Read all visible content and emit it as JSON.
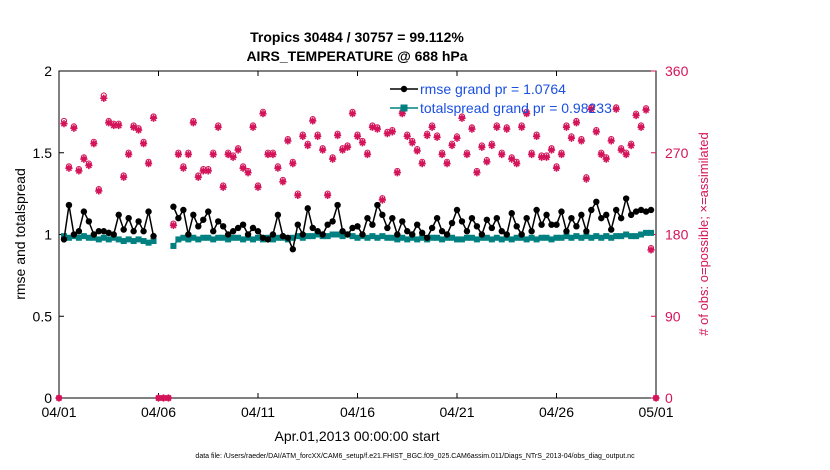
{
  "chart_data": {
    "type": "line",
    "title_line1": "Tropics 30484 / 30757 = 99.112%",
    "title_line2": "AIRS_TEMPERATURE @ 688 hPa",
    "xlabel": "Apr.01,2013 00:00:00 start",
    "ylabel_left": "rmse and totalspread",
    "ylabel_right": "# of obs: o=possible; ×=assimilated",
    "footnote": "data file: /Users/raeder/DAI/ATM_forcXX/CAM6_setup/f.e21.FHIST_BGC.f09_025.CAM6assim.011/Diags_NTrS_2013-04/obs_diag_output.nc",
    "xlim": [
      0,
      30
    ],
    "ylim_left": [
      0,
      2
    ],
    "ylim_right": [
      0,
      360
    ],
    "x_ticks": [
      0,
      5,
      10,
      15,
      20,
      25,
      30
    ],
    "x_tick_labels": [
      "04/01",
      "04/06",
      "04/11",
      "04/16",
      "04/21",
      "04/26",
      "05/01"
    ],
    "y_ticks_left": [
      "0",
      "0.5",
      "1",
      "1.5",
      "2"
    ],
    "y_ticks_right": [
      "0",
      "90",
      "180",
      "270",
      "360"
    ],
    "legend": [
      "rmse grand pr = 1.0764",
      "totalspread grand pr = 0.98233"
    ],
    "series": [
      {
        "name": "rmse",
        "color": "#000000",
        "x": [
          0.25,
          0.5,
          0.75,
          1.0,
          1.25,
          1.5,
          1.75,
          2.0,
          2.25,
          2.5,
          2.75,
          3.0,
          3.25,
          3.5,
          3.75,
          4.0,
          4.25,
          4.5,
          4.75,
          null,
          5.75,
          6.0,
          6.25,
          6.5,
          6.75,
          7.0,
          7.25,
          7.5,
          7.75,
          8.0,
          8.25,
          8.5,
          8.75,
          9.0,
          9.25,
          9.5,
          9.75,
          10.0,
          10.25,
          10.5,
          10.75,
          11.0,
          11.25,
          11.5,
          11.75,
          12.0,
          12.25,
          12.5,
          12.75,
          13.0,
          13.25,
          13.5,
          13.75,
          14.0,
          14.25,
          14.5,
          14.75,
          15.0,
          15.25,
          15.5,
          15.75,
          16.0,
          16.25,
          16.5,
          16.75,
          17.0,
          17.25,
          17.5,
          17.75,
          18.0,
          18.25,
          18.5,
          18.75,
          19.0,
          19.25,
          19.5,
          19.75,
          20.0,
          20.25,
          20.5,
          20.75,
          21.0,
          21.25,
          21.5,
          21.75,
          22.0,
          22.25,
          22.5,
          22.75,
          23.0,
          23.25,
          23.5,
          23.75,
          24.0,
          24.25,
          24.5,
          24.75,
          25.0,
          25.25,
          25.5,
          25.75,
          26.0,
          26.25,
          26.5,
          26.75,
          27.0,
          27.25,
          27.5,
          27.75,
          28.0,
          28.25,
          28.5,
          28.75,
          29.0,
          29.25,
          29.5,
          29.75
        ],
        "values": [
          0.97,
          1.18,
          1.0,
          1.02,
          1.14,
          1.08,
          1.0,
          1.02,
          1.02,
          1.01,
          1.0,
          1.12,
          1.03,
          1.1,
          1.02,
          1.08,
          1.02,
          1.14,
          0.99,
          null,
          1.17,
          1.1,
          1.15,
          1.0,
          1.12,
          1.05,
          1.09,
          1.14,
          1.02,
          1.08,
          1.05,
          1.0,
          1.02,
          1.04,
          1.06,
          1.0,
          1.04,
          1.02,
          0.98,
          0.97,
          1.0,
          1.12,
          0.99,
          0.98,
          0.91,
          1.06,
          1.0,
          1.16,
          1.04,
          1.02,
          1.0,
          1.06,
          1.08,
          1.18,
          1.02,
          1.0,
          1.04,
          1.05,
          1.0,
          1.1,
          1.06,
          1.18,
          1.12,
          1.04,
          1.1,
          1.0,
          1.08,
          1.02,
          1.0,
          1.06,
          1.01,
          0.98,
          1.04,
          1.1,
          1.02,
          1.0,
          1.07,
          1.15,
          1.08,
          1.02,
          1.1,
          1.05,
          1.0,
          1.09,
          1.04,
          1.1,
          1.02,
          1.0,
          1.13,
          1.05,
          1.0,
          1.1,
          1.02,
          1.15,
          1.06,
          1.12,
          1.06,
          1.06,
          1.14,
          1.02,
          1.1,
          1.05,
          1.12,
          1.02,
          1.15,
          1.2,
          1.1,
          1.12,
          1.03,
          1.15,
          1.1,
          1.22,
          1.12,
          1.14,
          1.15,
          1.14,
          1.15
        ]
      },
      {
        "name": "totalspread",
        "color": "#008080",
        "x": [
          0.25,
          0.5,
          0.75,
          1.0,
          1.25,
          1.5,
          1.75,
          2.0,
          2.25,
          2.5,
          2.75,
          3.0,
          3.25,
          3.5,
          3.75,
          4.0,
          4.25,
          4.5,
          4.75,
          null,
          5.75,
          6.0,
          6.25,
          6.5,
          6.75,
          7.0,
          7.25,
          7.5,
          7.75,
          8.0,
          8.25,
          8.5,
          8.75,
          9.0,
          9.25,
          9.5,
          9.75,
          10.0,
          10.25,
          10.5,
          10.75,
          11.0,
          11.25,
          11.5,
          11.75,
          12.0,
          12.25,
          12.5,
          12.75,
          13.0,
          13.25,
          13.5,
          13.75,
          14.0,
          14.25,
          14.5,
          14.75,
          15.0,
          15.25,
          15.5,
          15.75,
          16.0,
          16.25,
          16.5,
          16.75,
          17.0,
          17.25,
          17.5,
          17.75,
          18.0,
          18.25,
          18.5,
          18.75,
          19.0,
          19.25,
          19.5,
          19.75,
          20.0,
          20.25,
          20.5,
          20.75,
          21.0,
          21.25,
          21.5,
          21.75,
          22.0,
          22.25,
          22.5,
          22.75,
          23.0,
          23.25,
          23.5,
          23.75,
          24.0,
          24.25,
          24.5,
          24.75,
          25.0,
          25.25,
          25.5,
          25.75,
          26.0,
          26.25,
          26.5,
          26.75,
          27.0,
          27.25,
          27.5,
          27.75,
          28.0,
          28.25,
          28.5,
          28.75,
          29.0,
          29.25,
          29.5,
          29.75
        ],
        "values": [
          0.99,
          0.98,
          0.99,
          0.98,
          0.99,
          0.98,
          0.98,
          0.97,
          0.98,
          0.97,
          0.98,
          0.97,
          0.96,
          0.97,
          0.96,
          0.97,
          0.96,
          0.95,
          0.96,
          null,
          0.93,
          0.97,
          0.98,
          0.97,
          0.98,
          0.97,
          0.98,
          0.98,
          0.97,
          0.98,
          0.98,
          0.97,
          0.98,
          0.98,
          0.97,
          0.98,
          0.97,
          0.98,
          0.97,
          0.98,
          0.97,
          0.98,
          0.98,
          0.97,
          0.98,
          0.99,
          0.98,
          0.99,
          0.99,
          1.0,
          0.99,
          0.99,
          1.0,
          1.0,
          0.99,
          1.0,
          0.99,
          0.98,
          0.99,
          0.98,
          0.99,
          0.98,
          0.99,
          0.98,
          0.98,
          0.97,
          0.98,
          0.97,
          0.98,
          0.97,
          0.98,
          0.97,
          0.98,
          0.98,
          0.97,
          0.98,
          0.98,
          0.97,
          0.97,
          0.98,
          0.98,
          0.97,
          0.98,
          0.98,
          0.97,
          0.98,
          0.97,
          0.98,
          0.97,
          0.98,
          0.98,
          0.97,
          0.98,
          0.97,
          0.98,
          0.98,
          0.97,
          0.98,
          0.98,
          0.99,
          0.98,
          0.99,
          0.98,
          0.99,
          0.98,
          0.99,
          0.98,
          0.99,
          0.98,
          0.99,
          0.99,
          1.0,
          0.99,
          0.99,
          1.0,
          1.01,
          1.01
        ]
      },
      {
        "name": "obs_possible",
        "color": "#d4145a",
        "x": [
          0.0,
          0.25,
          0.5,
          0.75,
          1.0,
          1.25,
          1.5,
          1.75,
          2.0,
          2.25,
          2.5,
          2.75,
          3.0,
          3.25,
          3.5,
          3.75,
          4.0,
          4.25,
          4.5,
          4.75,
          5.0,
          5.25,
          5.5,
          5.75,
          6.0,
          6.25,
          6.5,
          6.75,
          7.0,
          7.25,
          7.5,
          7.75,
          8.0,
          8.25,
          8.5,
          8.75,
          9.0,
          9.25,
          9.5,
          9.75,
          10.0,
          10.25,
          10.5,
          10.75,
          11.0,
          11.25,
          11.5,
          11.75,
          12.0,
          12.25,
          12.5,
          12.75,
          13.0,
          13.25,
          13.5,
          13.75,
          14.0,
          14.25,
          14.5,
          14.75,
          15.0,
          15.25,
          15.5,
          15.75,
          16.0,
          16.25,
          16.5,
          16.75,
          17.0,
          17.25,
          17.5,
          17.75,
          18.0,
          18.25,
          18.5,
          18.75,
          19.0,
          19.25,
          19.5,
          19.75,
          20.0,
          20.25,
          20.5,
          20.75,
          21.0,
          21.25,
          21.5,
          21.75,
          22.0,
          22.25,
          22.5,
          22.75,
          23.0,
          23.25,
          23.5,
          23.75,
          24.0,
          24.25,
          24.5,
          24.75,
          25.0,
          25.25,
          25.5,
          25.75,
          26.0,
          26.25,
          26.5,
          26.75,
          27.0,
          27.25,
          27.5,
          27.75,
          28.0,
          28.25,
          28.5,
          28.75,
          29.0,
          29.25,
          29.5,
          29.75,
          30.0
        ],
        "values": [
          0,
          305,
          255,
          299,
          252,
          265,
          258,
          282,
          230,
          333,
          305,
          302,
          302,
          245,
          270,
          300,
          297,
          282,
          260,
          310,
          0,
          0,
          0,
          192,
          270,
          255,
          270,
          305,
          245,
          252,
          252,
          270,
          300,
          234,
          270,
          267,
          275,
          255,
          250,
          300,
          234,
          315,
          270,
          270,
          255,
          240,
          285,
          260,
          225,
          290,
          280,
          307,
          290,
          275,
          225,
          265,
          291,
          275,
          278,
          315,
          290,
          283,
          270,
          300,
          298,
          220,
          293,
          295,
          250,
          315,
          290,
          283,
          274,
          260,
          291,
          300,
          289,
          270,
          260,
          280,
          288,
          310,
          270,
          298,
          250,
          278,
          262,
          280,
          300,
          270,
          298,
          265,
          260,
          300,
          315,
          270,
          290,
          267,
          267,
          275,
          255,
          270,
          300,
          288,
          305,
          285,
          243,
          320,
          295,
          270,
          265,
          285,
          320,
          275,
          270,
          280,
          313,
          300,
          319,
          165,
          0
        ],
        "assimilated": [
          0,
          302,
          253,
          297,
          250,
          263,
          256,
          280,
          228,
          330,
          303,
          300,
          300,
          243,
          268,
          298,
          295,
          280,
          258,
          308,
          0,
          0,
          0,
          190,
          268,
          253,
          268,
          303,
          243,
          250,
          250,
          268,
          298,
          232,
          268,
          265,
          273,
          253,
          248,
          298,
          232,
          313,
          268,
          268,
          253,
          238,
          283,
          258,
          223,
          288,
          278,
          305,
          288,
          273,
          223,
          263,
          289,
          273,
          276,
          313,
          288,
          281,
          268,
          298,
          296,
          218,
          291,
          293,
          248,
          313,
          288,
          281,
          272,
          258,
          289,
          298,
          287,
          268,
          258,
          278,
          286,
          308,
          268,
          296,
          248,
          276,
          260,
          278,
          298,
          268,
          296,
          263,
          258,
          298,
          313,
          268,
          288,
          265,
          265,
          273,
          253,
          268,
          298,
          286,
          303,
          283,
          241,
          318,
          293,
          268,
          263,
          283,
          318,
          273,
          268,
          278,
          311,
          298,
          317,
          163,
          0
        ]
      }
    ]
  }
}
